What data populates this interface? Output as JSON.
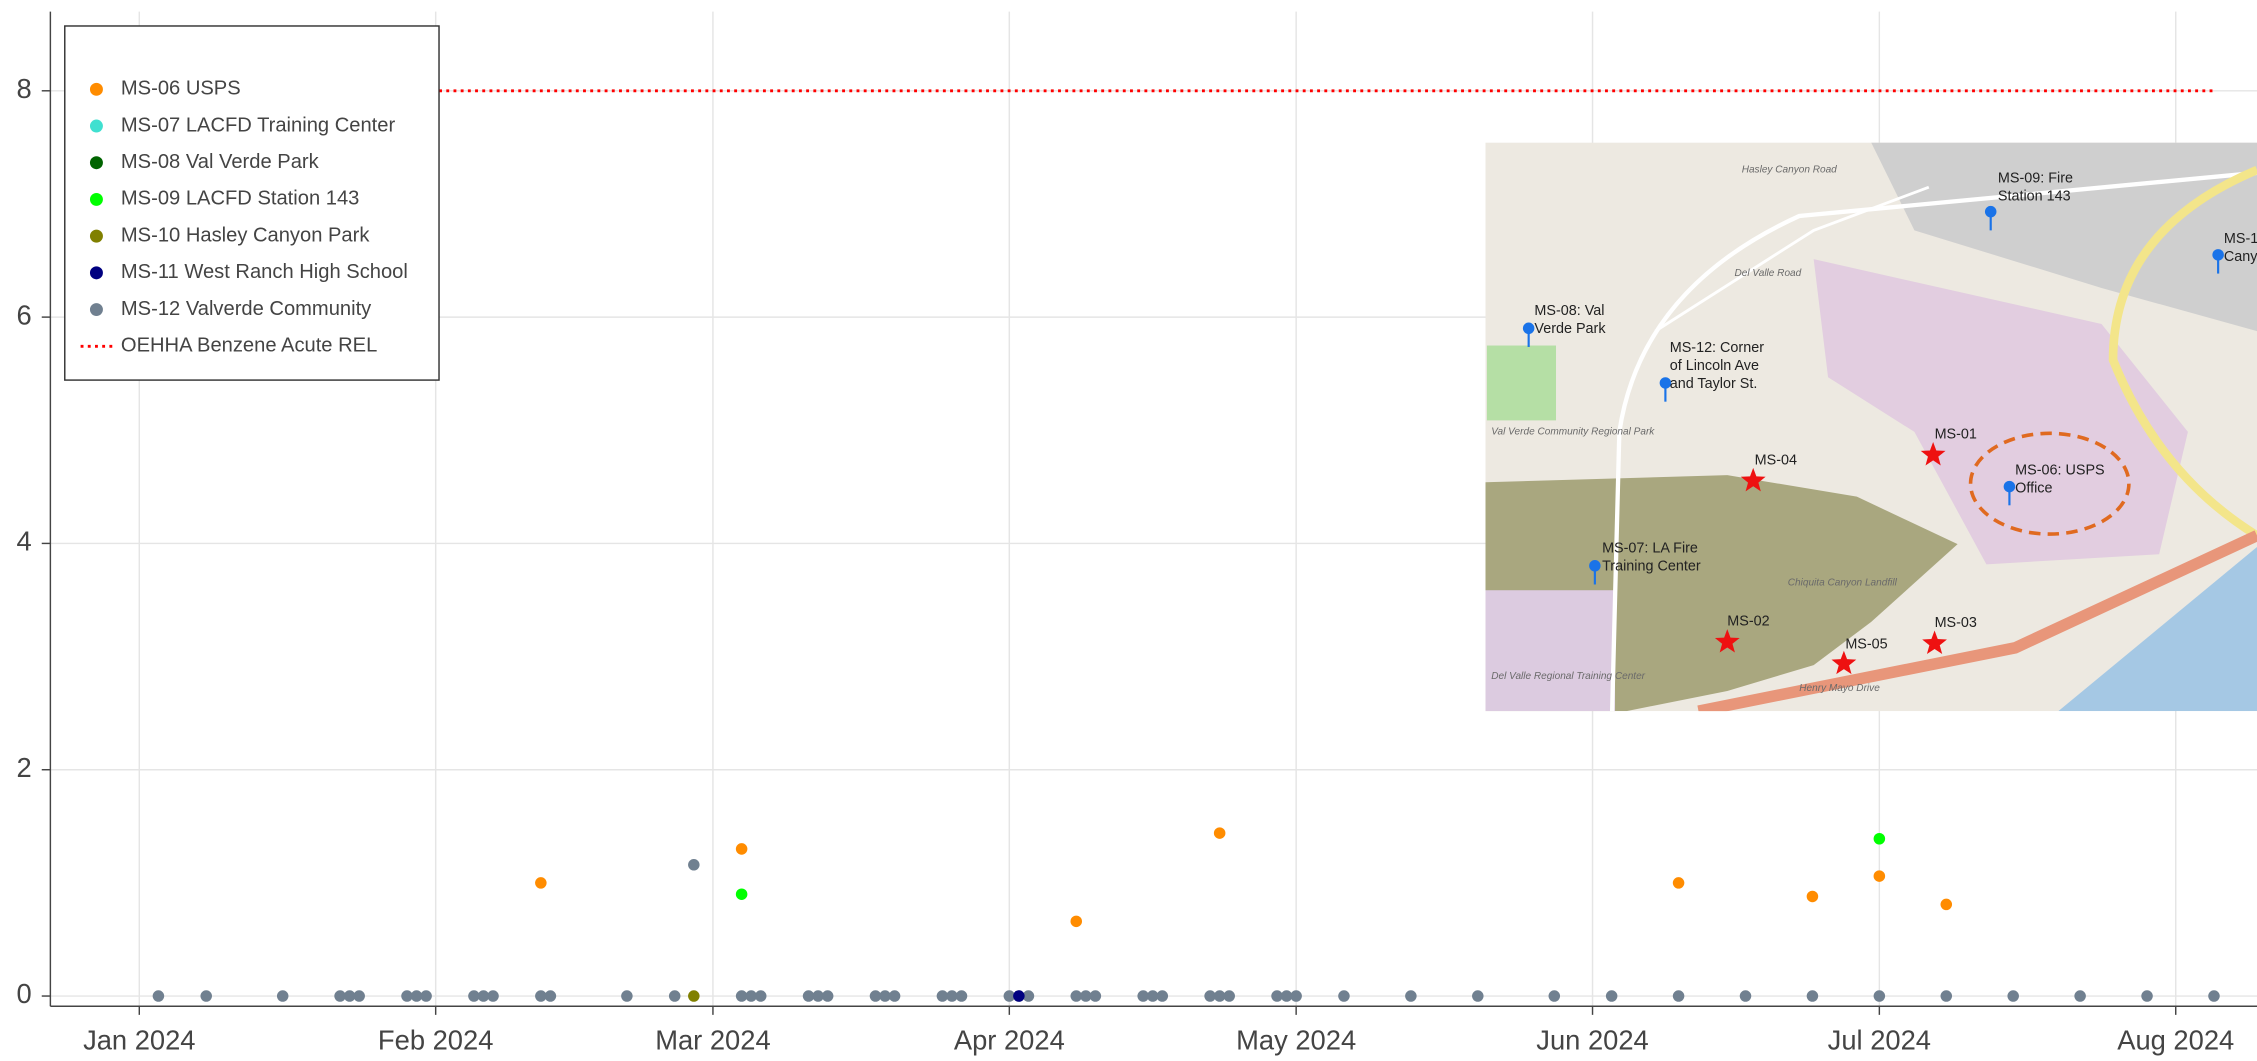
{
  "chart_data": {
    "type": "scatter",
    "xlim": [
      -9.3,
      221.5
    ],
    "xticks": [
      {
        "value": 0,
        "label": "Jan 2024"
      },
      {
        "value": 31,
        "label": "Feb 2024"
      },
      {
        "value": 60,
        "label": "Mar 2024"
      },
      {
        "value": 91,
        "label": "Apr 2024"
      },
      {
        "value": 121,
        "label": "May 2024"
      },
      {
        "value": 152,
        "label": "Jun 2024"
      },
      {
        "value": 182,
        "label": "Jul 2024"
      },
      {
        "value": 213,
        "label": "Aug 2024"
      }
    ],
    "ylim": [
      -0.09,
      8.7
    ],
    "yticks": [
      0,
      2,
      4,
      6,
      8
    ],
    "grid": true,
    "legend": "top-left",
    "series": [
      {
        "name": "MS-06 USPS",
        "color": "#ff8c00",
        "x": [
          42,
          63,
          98,
          113,
          161,
          175,
          182,
          189
        ],
        "values": [
          1.0,
          1.3,
          0.66,
          1.44,
          1.0,
          0.88,
          1.06,
          0.81
        ]
      },
      {
        "name": "MS-07 LACFD Training Center",
        "color": "#40e0d0",
        "x": [],
        "values": []
      },
      {
        "name": "MS-08 Val Verde Park",
        "color": "#006400",
        "x": [],
        "values": []
      },
      {
        "name": "MS-09 LACFD Station 143",
        "color": "#00ff00",
        "x": [
          63,
          182
        ],
        "values": [
          0.9,
          1.39
        ]
      },
      {
        "name": "MS-10 Hasley Canyon Park",
        "color": "#808000",
        "x": [
          58
        ],
        "values": [
          0
        ]
      },
      {
        "name": "MS-11 West Ranch High School",
        "color": "#000080",
        "x": [
          92
        ],
        "values": [
          0
        ]
      },
      {
        "name": "MS-12 Valverde Community",
        "color": "#708090",
        "x": [
          2,
          7,
          15,
          21,
          22,
          23,
          28,
          29,
          30,
          35,
          36,
          37,
          42,
          43,
          51,
          56,
          58,
          63,
          64,
          65,
          70,
          71,
          72,
          77,
          78,
          79,
          84,
          85,
          86,
          91,
          92,
          93,
          98,
          99,
          100,
          105,
          106,
          107,
          112,
          113,
          114,
          119,
          120,
          121,
          126,
          133,
          140,
          148,
          154,
          161,
          168,
          175,
          182,
          189,
          196,
          203,
          210,
          217
        ],
        "values": [
          0,
          0,
          0,
          0,
          0,
          0,
          0,
          0,
          0,
          0,
          0,
          0,
          0,
          0,
          0,
          0,
          1.16,
          0,
          0,
          0,
          0,
          0,
          0,
          0,
          0,
          0,
          0,
          0,
          0,
          0,
          0,
          0,
          0,
          0,
          0,
          0,
          0,
          0,
          0,
          0,
          0,
          0,
          0,
          0,
          0,
          0,
          0,
          0,
          0,
          0,
          0,
          0,
          0,
          0,
          0,
          0,
          0,
          0
        ]
      },
      {
        "name": "OEHHA Benzene Acute REL",
        "color": "#ff0000",
        "mode": "dotted-line",
        "x": [
          2,
          217
        ],
        "values": [
          8,
          8
        ]
      }
    ]
  },
  "inset_map": {
    "labels": [
      [
        "MS-09: Fire",
        "Station 143"
      ],
      [
        "MS-1",
        "Cany"
      ],
      [
        "MS-08: Val",
        "Verde Park"
      ],
      [
        "MS-12: Corner",
        "of Lincoln Ave",
        "and Taylor St."
      ],
      [
        "MS-04"
      ],
      [
        "MS-01"
      ],
      [
        "MS-06: USPS",
        "Office"
      ],
      [
        "MS-07: LA Fire",
        "Training Center"
      ],
      [
        "MS-02"
      ],
      [
        "MS-05"
      ],
      [
        "MS-03"
      ]
    ],
    "places": [
      "Hasley Canyon Road",
      "Del Valle Road",
      "Henry Mayo Drive",
      "Chiquita Canyon Landfill",
      "Val Verde Community Regional Park",
      "Del Valle Regional Training Center"
    ]
  }
}
